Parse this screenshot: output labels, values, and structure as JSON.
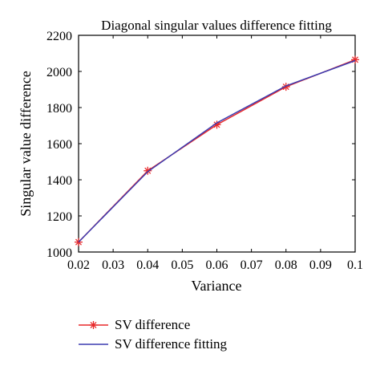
{
  "chart_data": {
    "type": "line",
    "title": "Diagonal singular values difference fitting",
    "xlabel": "Variance",
    "ylabel": "Singular value difference",
    "xlim": [
      0.02,
      0.1
    ],
    "ylim": [
      1000,
      2200
    ],
    "xticks": [
      "0.02",
      "0.03",
      "0.04",
      "0.05",
      "0.06",
      "0.07",
      "0.08",
      "0.09",
      "0.1"
    ],
    "yticks": [
      "1000",
      "1200",
      "1400",
      "1600",
      "1800",
      "2000",
      "2200"
    ],
    "x": [
      0.02,
      0.04,
      0.06,
      0.08,
      0.1
    ],
    "series": [
      {
        "name": "SV difference",
        "values": [
          1055,
          1450,
          1705,
          1915,
          2065
        ],
        "color": "#e8282a",
        "marker": "asterisk"
      },
      {
        "name": "SV difference fitting",
        "values": [
          1055,
          1445,
          1715,
          1920,
          2060
        ],
        "color": "#3b3bb0",
        "marker": "none"
      }
    ],
    "grid": false,
    "legend_position": "below"
  }
}
